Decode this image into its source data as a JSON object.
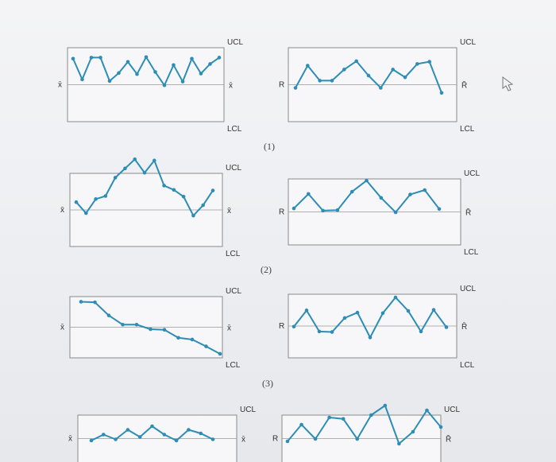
{
  "colors": {
    "line": "#2d8db5",
    "frame": "#8a8a8a",
    "centerline": "#999999",
    "text": "#333333"
  },
  "labels": {
    "ucl": "UCL",
    "lcl": "LCL",
    "xbar": "x̄",
    "r": "R",
    "rbar": "R̄"
  },
  "captions": [
    "(1)",
    "(2)",
    "(3)"
  ],
  "chart_data": [
    {
      "type": "line",
      "pattern": "1",
      "chart": "xbar",
      "ylim": [
        0,
        1
      ],
      "values": [
        0.72,
        0.33,
        0.74,
        0.74,
        0.3,
        0.45,
        0.66,
        0.43,
        0.75,
        0.47,
        0.22,
        0.6,
        0.29,
        0.72,
        0.44,
        0.62,
        0.74
      ]
    },
    {
      "type": "line",
      "pattern": "1",
      "chart": "range",
      "ylim": [
        0,
        1
      ],
      "values": [
        0.35,
        0.75,
        0.48,
        0.48,
        0.68,
        0.83,
        0.57,
        0.35,
        0.68,
        0.54,
        0.78,
        0.82,
        0.26
      ]
    },
    {
      "type": "line",
      "pattern": "2",
      "chart": "xbar",
      "ylim": [
        0,
        1
      ],
      "values": [
        0.4,
        0.22,
        0.45,
        0.5,
        0.8,
        0.95,
        1.1,
        0.88,
        1.08,
        0.67,
        0.6,
        0.49,
        0.18,
        0.35,
        0.59
      ]
    },
    {
      "type": "line",
      "pattern": "2",
      "chart": "range",
      "ylim": [
        0,
        1
      ],
      "values": [
        0.47,
        0.73,
        0.43,
        0.44,
        0.77,
        0.97,
        0.66,
        0.4,
        0.72,
        0.8,
        0.46
      ]
    },
    {
      "type": "line",
      "pattern": "3",
      "chart": "xbar",
      "ylim": [
        0,
        1
      ],
      "values": [
        0.98,
        0.97,
        0.74,
        0.58,
        0.58,
        0.5,
        0.49,
        0.35,
        0.32,
        0.2,
        0.07
      ]
    },
    {
      "type": "line",
      "pattern": "3",
      "chart": "range",
      "ylim": [
        0,
        1
      ],
      "values": [
        0.43,
        0.73,
        0.34,
        0.33,
        0.59,
        0.69,
        0.23,
        0.68,
        0.97,
        0.72,
        0.34,
        0.74,
        0.42
      ]
    },
    {
      "type": "line",
      "pattern": "4",
      "chart": "xbar",
      "ylim": [
        0,
        1
      ],
      "values": [
        0.3,
        0.55,
        0.35,
        0.75,
        0.45,
        0.9,
        0.55,
        0.3,
        0.75,
        0.6,
        0.35
      ]
    },
    {
      "type": "line",
      "pattern": "4",
      "chart": "range",
      "ylim": [
        0,
        1
      ],
      "values": [
        0.25,
        0.6,
        0.3,
        0.75,
        0.72,
        0.3,
        0.8,
        1.0,
        0.2,
        0.45,
        0.9,
        0.55
      ]
    }
  ]
}
